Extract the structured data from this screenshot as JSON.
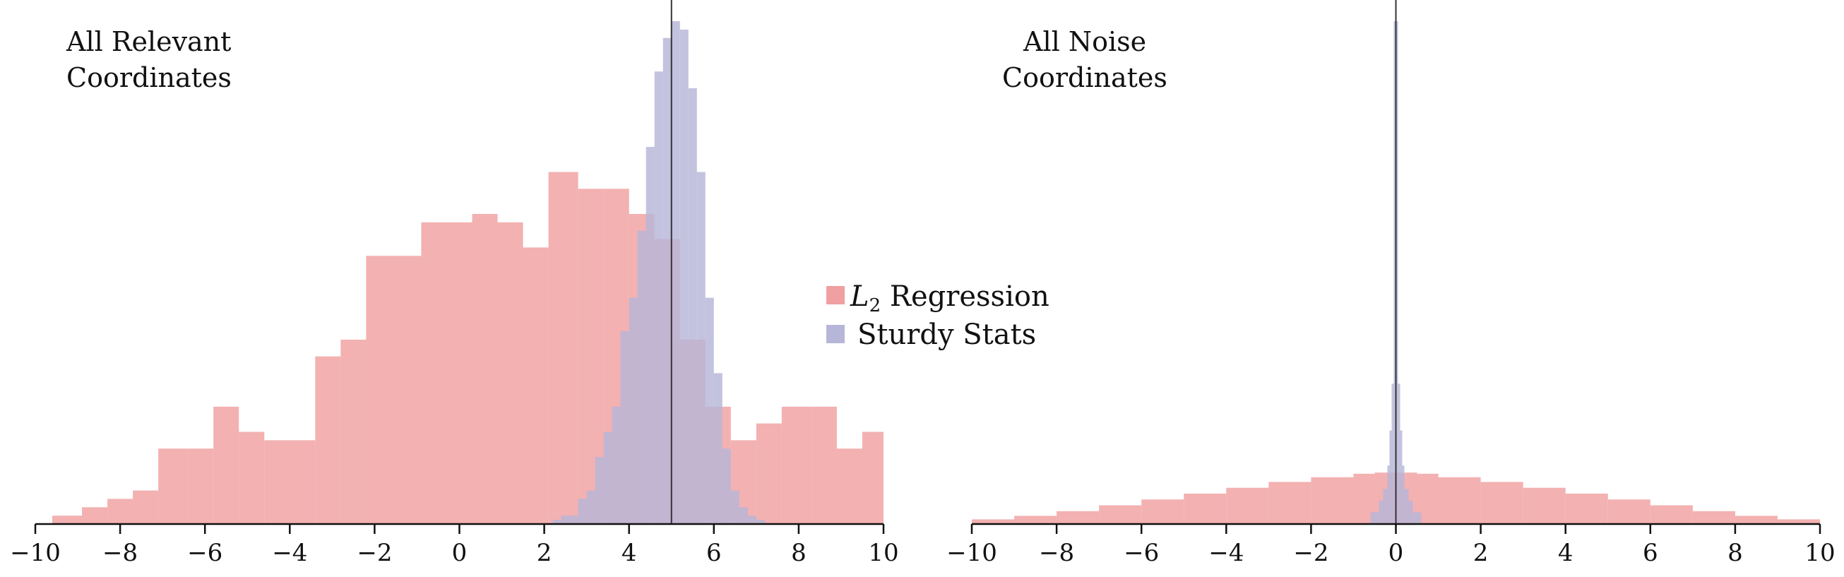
{
  "chart_data": [
    {
      "type": "bar",
      "subtype": "overlaid-histogram",
      "title_lines": [
        "All Relevant",
        "Coordinates"
      ],
      "xlim": [
        -10,
        10
      ],
      "xticks": [
        -10,
        -8,
        -6,
        -4,
        -2,
        0,
        2,
        4,
        6,
        8,
        10
      ],
      "xtick_labels": [
        "−10",
        "−8",
        "−6",
        "−4",
        "−2",
        "0",
        "2",
        "4",
        "6",
        "8",
        "10"
      ],
      "yaxis_visible": false,
      "reference_line_x": 5,
      "series": [
        {
          "name": "L2 Regression",
          "color": "#f0a0a0",
          "bin_edges": [
            -9.6,
            -8.9,
            -8.3,
            -7.7,
            -7.1,
            -6.4,
            -5.8,
            -5.2,
            -4.6,
            -3.4,
            -2.8,
            -2.2,
            -1.5,
            -0.9,
            -0.3,
            0.3,
            0.9,
            1.5,
            2.1,
            2.8,
            3.4,
            4.0,
            4.6,
            5.2,
            5.8,
            6.4,
            7.0,
            7.6,
            8.3,
            8.9,
            9.5,
            10.0
          ],
          "counts": [
            1,
            2,
            3,
            4,
            9,
            9,
            14,
            11,
            10,
            20,
            22,
            32,
            32,
            36,
            36,
            37,
            36,
            33,
            42,
            40,
            40,
            37,
            34,
            22,
            14,
            10,
            12,
            14,
            14,
            9,
            11
          ]
        },
        {
          "name": "Sturdy Stats",
          "color": "#b6b6d8",
          "bin_edges": [
            2.2,
            2.4,
            2.6,
            2.8,
            3.0,
            3.2,
            3.4,
            3.6,
            3.8,
            4.0,
            4.2,
            4.4,
            4.6,
            4.8,
            5.0,
            5.2,
            5.4,
            5.6,
            5.8,
            6.0,
            6.2,
            6.4,
            6.6,
            6.8,
            7.0,
            7.2
          ],
          "counts": [
            0.5,
            1,
            1,
            3,
            4,
            8,
            11,
            14,
            23,
            27,
            35,
            45,
            54,
            58,
            60,
            59,
            52,
            42,
            27,
            18,
            9,
            4,
            2,
            1,
            0.5
          ]
        }
      ]
    },
    {
      "type": "bar",
      "subtype": "overlaid-histogram",
      "title_lines": [
        "All Noise",
        "Coordinates"
      ],
      "xlim": [
        -10,
        10
      ],
      "xticks": [
        -10,
        -8,
        -6,
        -4,
        -2,
        0,
        2,
        4,
        6,
        8,
        10
      ],
      "xtick_labels": [
        "−10",
        "−8",
        "−6",
        "−4",
        "−2",
        "0",
        "2",
        "4",
        "6",
        "8",
        "10"
      ],
      "yaxis_visible": false,
      "reference_line_x": 0,
      "series": [
        {
          "name": "L2 Regression",
          "color": "#f0a0a0",
          "bin_edges": [
            -10.0,
            -9.0,
            -8.0,
            -7.0,
            -6.0,
            -5.0,
            -4.0,
            -3.0,
            -2.0,
            -1.0,
            -0.5,
            0.0,
            0.5,
            1.0,
            2.0,
            3.0,
            4.0,
            5.0,
            6.0,
            7.0,
            8.0,
            9.0,
            10.0
          ],
          "counts": [
            0.4,
            0.7,
            1.1,
            1.6,
            2.1,
            2.6,
            3.1,
            3.6,
            4.0,
            4.3,
            4.4,
            4.4,
            4.3,
            4.0,
            3.6,
            3.1,
            2.6,
            2.1,
            1.6,
            1.1,
            0.7,
            0.4
          ]
        },
        {
          "name": "Sturdy Stats",
          "color": "#b6b6d8",
          "bin_edges": [
            -0.6,
            -0.4,
            -0.3,
            -0.2,
            -0.15,
            -0.1,
            -0.05,
            0.0,
            0.05,
            0.1,
            0.15,
            0.2,
            0.3,
            0.4,
            0.6
          ],
          "counts": [
            1,
            2,
            3,
            5,
            8,
            12,
            43,
            43,
            12,
            8,
            5,
            3,
            2,
            1
          ]
        }
      ]
    }
  ],
  "legend": {
    "items": [
      {
        "label_main": "L",
        "label_sub": "2",
        "label_rest": " Regression",
        "color": "#f0a0a0"
      },
      {
        "label": "Sturdy Stats",
        "color": "#b6b6d8"
      }
    ]
  }
}
